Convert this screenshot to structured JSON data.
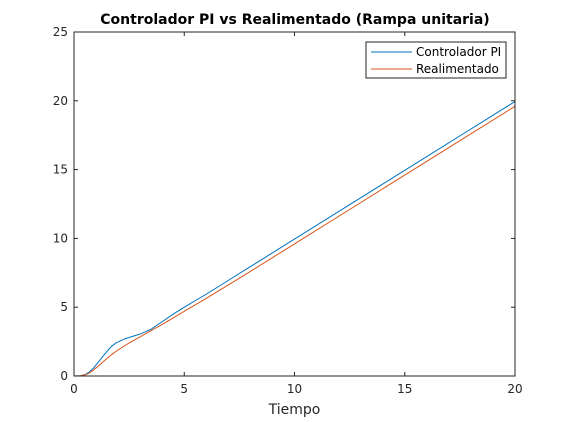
{
  "chart_data": {
    "type": "line",
    "title": "Controlador PI vs Realimentado (Rampa unitaria)",
    "xlabel": "Tiempo",
    "ylabel": "",
    "xlim": [
      0,
      20
    ],
    "ylim": [
      0,
      25
    ],
    "xticks": [
      0,
      5,
      10,
      15,
      20
    ],
    "yticks": [
      0,
      5,
      10,
      15,
      20,
      25
    ],
    "grid": false,
    "legend_position": "top-right",
    "series": [
      {
        "name": "Controlador PI",
        "color": "#0072BD",
        "x": [
          0,
          0.3,
          0.5,
          0.7,
          0.9,
          1.1,
          1.3,
          1.5,
          1.7,
          1.9,
          2.1,
          2.3,
          2.6,
          3.0,
          3.5,
          4.0,
          4.5,
          5.0,
          6.0,
          7.0,
          8.0,
          10.0,
          12.0,
          14.0,
          16.0,
          18.0,
          20.0
        ],
        "y": [
          0,
          0.02,
          0.1,
          0.3,
          0.6,
          1.0,
          1.4,
          1.8,
          2.15,
          2.4,
          2.55,
          2.7,
          2.85,
          3.05,
          3.4,
          3.95,
          4.5,
          5.0,
          5.95,
          6.95,
          7.95,
          9.95,
          11.95,
          13.95,
          15.95,
          17.95,
          19.95
        ]
      },
      {
        "name": "Realimentado",
        "color": "#D95319",
        "x": [
          0,
          0.3,
          0.5,
          0.7,
          0.9,
          1.1,
          1.3,
          1.5,
          1.7,
          2.0,
          2.5,
          3.0,
          3.5,
          4.0,
          5.0,
          6.0,
          7.0,
          8.0,
          10.0,
          12.0,
          14.0,
          16.0,
          18.0,
          20.0
        ],
        "y": [
          0,
          0.02,
          0.08,
          0.22,
          0.45,
          0.72,
          1.0,
          1.28,
          1.55,
          1.9,
          2.4,
          2.85,
          3.3,
          3.75,
          4.7,
          5.65,
          6.62,
          7.6,
          9.6,
          11.6,
          13.6,
          15.6,
          17.6,
          19.6
        ]
      }
    ]
  }
}
